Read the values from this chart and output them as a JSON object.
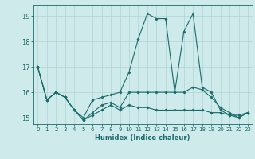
{
  "xlabel": "Humidex (Indice chaleur)",
  "background_color": "#ceeaea",
  "grid_color": "#afd4d4",
  "line_color": "#1a6b6b",
  "xlim": [
    -0.5,
    23.5
  ],
  "ylim": [
    14.75,
    19.45
  ],
  "yticks": [
    15,
    16,
    17,
    18,
    19
  ],
  "xticks": [
    0,
    1,
    2,
    3,
    4,
    5,
    6,
    7,
    8,
    9,
    10,
    11,
    12,
    13,
    14,
    15,
    16,
    17,
    18,
    19,
    20,
    21,
    22,
    23
  ],
  "series": [
    [
      17.0,
      15.7,
      16.0,
      15.8,
      15.3,
      15.0,
      15.7,
      15.8,
      15.9,
      16.0,
      16.8,
      18.1,
      19.1,
      18.9,
      18.9,
      16.0,
      18.4,
      19.1,
      16.2,
      16.0,
      15.3,
      15.1,
      15.1,
      15.2
    ],
    [
      17.0,
      15.7,
      16.0,
      15.8,
      15.3,
      14.9,
      15.2,
      15.5,
      15.6,
      15.4,
      16.0,
      16.0,
      16.0,
      16.0,
      16.0,
      16.0,
      16.0,
      16.2,
      16.1,
      15.8,
      15.4,
      15.2,
      15.0,
      15.2
    ],
    [
      17.0,
      15.7,
      16.0,
      15.8,
      15.3,
      14.9,
      15.1,
      15.3,
      15.5,
      15.3,
      15.5,
      15.4,
      15.4,
      15.3,
      15.3,
      15.3,
      15.3,
      15.3,
      15.3,
      15.2,
      15.2,
      15.1,
      15.0,
      15.2
    ]
  ]
}
